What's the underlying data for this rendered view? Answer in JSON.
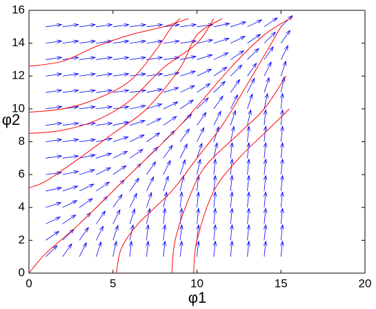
{
  "chart_data": {
    "type": "quiver",
    "xlabel": "φ1",
    "ylabel": "φ2",
    "xlim": [
      0,
      20
    ],
    "ylim": [
      0,
      16
    ],
    "xticks": [
      0,
      5,
      10,
      15,
      20
    ],
    "yticks": [
      0,
      2,
      4,
      6,
      8,
      10,
      12,
      14,
      16
    ],
    "arrow_color": "#0000ff",
    "x": [
      1,
      2,
      3,
      4,
      5,
      6,
      7,
      8,
      9,
      10,
      11,
      12,
      13,
      14,
      15
    ],
    "y": [
      1,
      2,
      3,
      4,
      5,
      6,
      7,
      8,
      9,
      10,
      11,
      12,
      13,
      14,
      15
    ],
    "u": [
      [
        0.71,
        0.57,
        0.44,
        0.31,
        0.21,
        0.1,
        0.1,
        0.1,
        0.1,
        0.1,
        0.1,
        0.1,
        0.1,
        0.1,
        0.1
      ],
      [
        0.82,
        0.71,
        0.57,
        0.44,
        0.31,
        0.21,
        0.1,
        0.1,
        0.1,
        0.1,
        0.1,
        0.1,
        0.1,
        0.1,
        0.1
      ],
      [
        0.9,
        0.82,
        0.71,
        0.57,
        0.44,
        0.31,
        0.21,
        0.1,
        0.1,
        0.1,
        0.1,
        0.1,
        0.1,
        0.1,
        0.1
      ],
      [
        0.95,
        0.9,
        0.82,
        0.71,
        0.57,
        0.44,
        0.31,
        0.21,
        0.1,
        0.1,
        0.1,
        0.1,
        0.1,
        0.1,
        0.1
      ],
      [
        0.98,
        0.95,
        0.9,
        0.82,
        0.71,
        0.57,
        0.44,
        0.31,
        0.21,
        0.1,
        0.1,
        0.1,
        0.1,
        0.1,
        0.1
      ],
      [
        0.99,
        0.98,
        0.95,
        0.9,
        0.82,
        0.71,
        0.57,
        0.44,
        0.31,
        0.21,
        0.1,
        0.1,
        0.1,
        0.1,
        0.1
      ],
      [
        0.99,
        0.99,
        0.98,
        0.95,
        0.9,
        0.82,
        0.71,
        0.57,
        0.44,
        0.31,
        0.21,
        0.1,
        0.1,
        0.1,
        0.1
      ],
      [
        0.99,
        0.99,
        0.99,
        0.98,
        0.95,
        0.9,
        0.82,
        0.71,
        0.57,
        0.44,
        0.31,
        0.21,
        0.1,
        0.1,
        0.1
      ],
      [
        0.99,
        0.99,
        0.99,
        0.99,
        0.98,
        0.95,
        0.9,
        0.82,
        0.71,
        0.57,
        0.44,
        0.31,
        0.21,
        0.1,
        0.1
      ],
      [
        0.99,
        0.99,
        0.99,
        0.99,
        0.99,
        0.98,
        0.95,
        0.9,
        0.82,
        0.71,
        0.57,
        0.44,
        0.31,
        0.21,
        0.1
      ],
      [
        0.99,
        0.99,
        0.99,
        0.99,
        0.99,
        0.99,
        0.98,
        0.95,
        0.9,
        0.82,
        0.71,
        0.57,
        0.44,
        0.31,
        0.21
      ],
      [
        0.99,
        0.99,
        0.99,
        0.99,
        0.99,
        0.99,
        0.99,
        0.98,
        0.95,
        0.9,
        0.82,
        0.71,
        0.57,
        0.44,
        0.31
      ],
      [
        0.99,
        0.99,
        0.99,
        0.99,
        0.99,
        0.99,
        0.99,
        0.99,
        0.98,
        0.95,
        0.9,
        0.82,
        0.71,
        0.57,
        0.44
      ],
      [
        0.99,
        0.99,
        0.99,
        0.99,
        0.99,
        0.99,
        0.99,
        0.99,
        0.99,
        0.98,
        0.95,
        0.9,
        0.82,
        0.71,
        0.57
      ],
      [
        0.99,
        0.99,
        0.99,
        0.99,
        0.99,
        0.99,
        0.99,
        0.99,
        0.99,
        0.99,
        0.98,
        0.95,
        0.9,
        0.82,
        0.71
      ]
    ],
    "v": [
      [
        0.71,
        0.82,
        0.9,
        0.95,
        0.98,
        0.99,
        0.99,
        0.99,
        0.99,
        0.99,
        0.99,
        0.99,
        0.99,
        0.99,
        0.99
      ],
      [
        0.57,
        0.71,
        0.82,
        0.9,
        0.95,
        0.98,
        0.99,
        0.99,
        0.99,
        0.99,
        0.99,
        0.99,
        0.99,
        0.99,
        0.99
      ],
      [
        0.44,
        0.57,
        0.71,
        0.82,
        0.9,
        0.95,
        0.98,
        0.99,
        0.99,
        0.99,
        0.99,
        0.99,
        0.99,
        0.99,
        0.99
      ],
      [
        0.31,
        0.44,
        0.57,
        0.71,
        0.82,
        0.9,
        0.95,
        0.98,
        0.99,
        0.99,
        0.99,
        0.99,
        0.99,
        0.99,
        0.99
      ],
      [
        0.21,
        0.31,
        0.44,
        0.57,
        0.71,
        0.82,
        0.9,
        0.95,
        0.98,
        0.99,
        0.99,
        0.99,
        0.99,
        0.99,
        0.99
      ],
      [
        0.14,
        0.21,
        0.31,
        0.44,
        0.57,
        0.71,
        0.82,
        0.9,
        0.95,
        0.98,
        0.99,
        0.99,
        0.99,
        0.99,
        0.99
      ],
      [
        0.14,
        0.14,
        0.21,
        0.31,
        0.44,
        0.57,
        0.71,
        0.82,
        0.9,
        0.95,
        0.98,
        0.99,
        0.99,
        0.99,
        0.99
      ],
      [
        0.14,
        0.14,
        0.14,
        0.21,
        0.31,
        0.44,
        0.57,
        0.71,
        0.82,
        0.9,
        0.95,
        0.98,
        0.99,
        0.99,
        0.99
      ],
      [
        0.14,
        0.14,
        0.14,
        0.14,
        0.21,
        0.31,
        0.44,
        0.57,
        0.71,
        0.82,
        0.9,
        0.95,
        0.98,
        0.99,
        0.99
      ],
      [
        0.14,
        0.14,
        0.14,
        0.14,
        0.14,
        0.21,
        0.31,
        0.44,
        0.57,
        0.71,
        0.82,
        0.9,
        0.95,
        0.98,
        0.99
      ],
      [
        0.14,
        0.14,
        0.14,
        0.14,
        0.14,
        0.14,
        0.21,
        0.31,
        0.44,
        0.57,
        0.71,
        0.82,
        0.9,
        0.95,
        0.98
      ],
      [
        0.14,
        0.14,
        0.14,
        0.14,
        0.14,
        0.14,
        0.14,
        0.21,
        0.31,
        0.44,
        0.57,
        0.71,
        0.82,
        0.9,
        0.95
      ],
      [
        0.14,
        0.14,
        0.14,
        0.14,
        0.14,
        0.14,
        0.14,
        0.14,
        0.21,
        0.31,
        0.44,
        0.57,
        0.71,
        0.82,
        0.9
      ],
      [
        0.14,
        0.14,
        0.14,
        0.14,
        0.14,
        0.14,
        0.14,
        0.14,
        0.14,
        0.21,
        0.31,
        0.44,
        0.57,
        0.71,
        0.82
      ],
      [
        0.14,
        0.14,
        0.14,
        0.14,
        0.14,
        0.14,
        0.14,
        0.14,
        0.14,
        0.14,
        0.21,
        0.31,
        0.44,
        0.57,
        0.71
      ]
    ],
    "streamline_color": "#ff0000",
    "streamlines": [
      {
        "x": [
          0,
          1,
          3,
          6,
          9,
          12,
          14,
          15.7
        ],
        "y": [
          0,
          1.2,
          3,
          6,
          9,
          12.5,
          14.5,
          15.6
        ]
      },
      {
        "x": [
          0,
          2,
          4,
          6,
          8,
          9.5
        ],
        "y": [
          12.6,
          12.9,
          13.8,
          14.5,
          15,
          15.5
        ]
      },
      {
        "x": [
          0,
          2,
          4,
          6,
          7.5,
          8.5,
          9
        ],
        "y": [
          9.8,
          10,
          10.6,
          11.7,
          13.5,
          15,
          15.5
        ]
      },
      {
        "x": [
          0,
          2,
          4,
          6,
          8,
          10,
          11
        ],
        "y": [
          8.5,
          8.7,
          9.3,
          10.5,
          12.5,
          14,
          15.5
        ]
      },
      {
        "x": [
          0,
          1,
          3,
          5,
          7,
          9,
          10,
          11.5
        ],
        "y": [
          5.2,
          5.6,
          7,
          8.5,
          10,
          12.5,
          14.5,
          15.5
        ]
      },
      {
        "x": [
          5.2,
          5.5,
          6.5,
          8.5,
          10,
          11.5,
          13,
          15
        ],
        "y": [
          0,
          1.5,
          3,
          5,
          7,
          9,
          11.5,
          15
        ]
      },
      {
        "x": [
          8.5,
          8.7,
          9.5,
          10.5,
          12.5,
          14,
          15.3
        ],
        "y": [
          0,
          2,
          4.5,
          6.5,
          8.5,
          10,
          12
        ]
      },
      {
        "x": [
          9.8,
          10,
          11,
          12.5,
          14,
          15.5
        ],
        "y": [
          0,
          2,
          5,
          7,
          8.5,
          10
        ]
      }
    ]
  }
}
